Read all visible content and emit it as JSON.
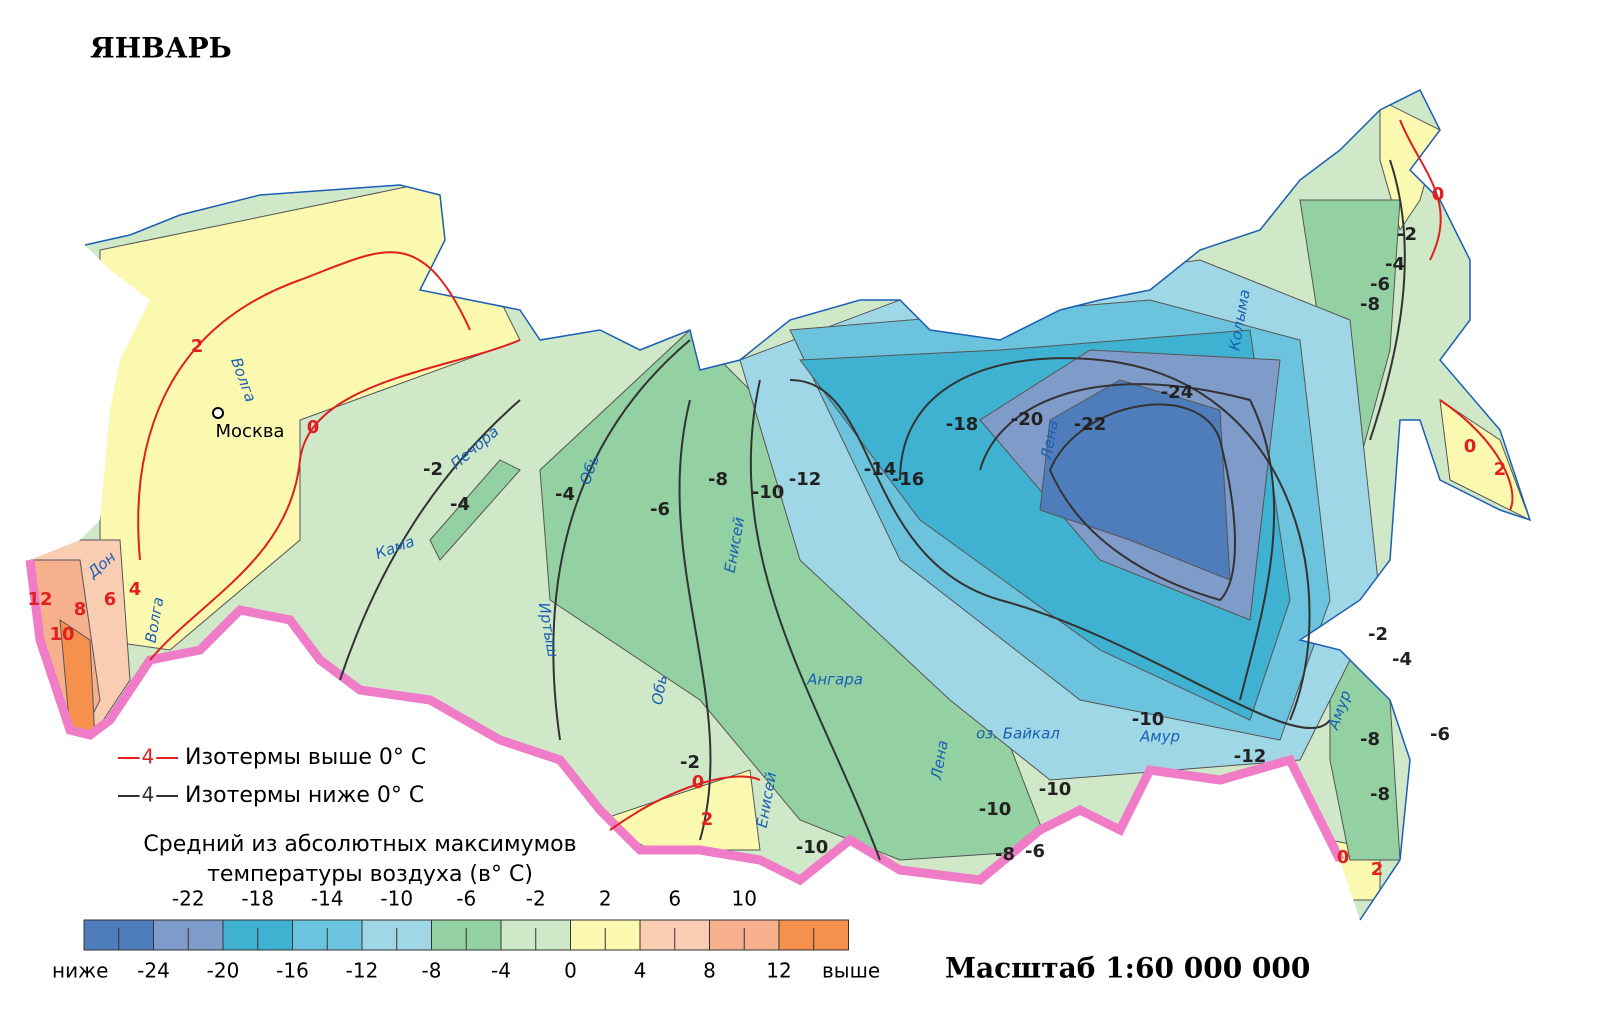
{
  "title": "ЯНВАРЬ",
  "scale": "Масштаб 1:60 000 000",
  "map": {
    "city": "Москва",
    "rivers": [
      "Волга",
      "Печора",
      "Кама",
      "Дон",
      "Волга",
      "Обь",
      "Иртыш",
      "Обь",
      "Енисей",
      "Ангара",
      "Лена",
      "оз. Байкал",
      "Амур",
      "Амур",
      "Лена",
      "Колыма",
      "Енисей"
    ],
    "isotherms": [
      2,
      0,
      -2,
      -4,
      -4,
      -6,
      -8,
      -10,
      -12,
      -14,
      -16,
      -18,
      -20,
      -22,
      -24,
      -10,
      -12,
      -10,
      -10,
      -8,
      -6,
      -10,
      -2,
      0,
      2,
      -2,
      -4,
      -6,
      -8,
      0,
      0,
      2,
      -2,
      -4,
      -6,
      -8,
      -8,
      0,
      2,
      12,
      10,
      8,
      6,
      4
    ]
  },
  "legend": {
    "above_zero": {
      "sample": 4,
      "text": "Изотермы выше 0° C"
    },
    "below_zero": {
      "sample": 4,
      "text": "Изотермы ниже 0° C"
    },
    "color_scale": {
      "title": [
        "Средний из абсолютных максимумов",
        "температуры воздуха  (в° C)"
      ],
      "top_labels": [
        -22,
        -18,
        -14,
        -10,
        -6,
        -2,
        2,
        6,
        10
      ],
      "bottom_labels": [
        -24,
        -20,
        -16,
        -12,
        -8,
        -4,
        0,
        4,
        8,
        12
      ],
      "below": "ниже",
      "above": "выше",
      "colors": [
        "#4f7dbb",
        "#7f9bc9",
        "#3fb2d2",
        "#6cc3dd",
        "#9fd7e6",
        "#93d0a2",
        "#cfe8c8",
        "#fbf8b0",
        "#f8cdb1",
        "#f7b08e",
        "#f5914c"
      ]
    }
  }
}
